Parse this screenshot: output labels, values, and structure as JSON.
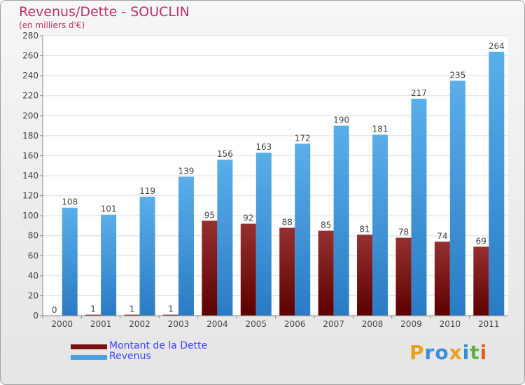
{
  "chart_data": {
    "type": "bar",
    "title": "Revenus/Dette - SOUCLIN",
    "subtitle": "(en milliers d'€)",
    "xlabel": "",
    "ylabel": "",
    "ylim": [
      0,
      280
    ],
    "yticks": [
      0,
      20,
      40,
      60,
      80,
      100,
      120,
      140,
      160,
      180,
      200,
      220,
      240,
      260,
      280
    ],
    "grid": true,
    "legend_position": "bottom-left",
    "categories": [
      "2000",
      "2001",
      "2002",
      "2003",
      "2004",
      "2005",
      "2006",
      "2007",
      "2008",
      "2009",
      "2010",
      "2011"
    ],
    "series": [
      {
        "name": "Montant de la Dette",
        "color": "#7a1010",
        "values": [
          0,
          1,
          1,
          1,
          95,
          92,
          88,
          85,
          81,
          78,
          74,
          69
        ]
      },
      {
        "name": "Revenus",
        "color": "#4a9de0",
        "values": [
          108,
          101,
          119,
          139,
          156,
          163,
          172,
          190,
          181,
          217,
          235,
          264
        ]
      }
    ]
  },
  "logo": {
    "letters": [
      "P",
      "r",
      "o",
      "x",
      "i",
      "t",
      "i"
    ],
    "colors": [
      "#e8a020",
      "#3a8ed8",
      "#3a8ed8",
      "#e8a020",
      "#3a8ed8",
      "#60b040",
      "#e06020"
    ]
  }
}
